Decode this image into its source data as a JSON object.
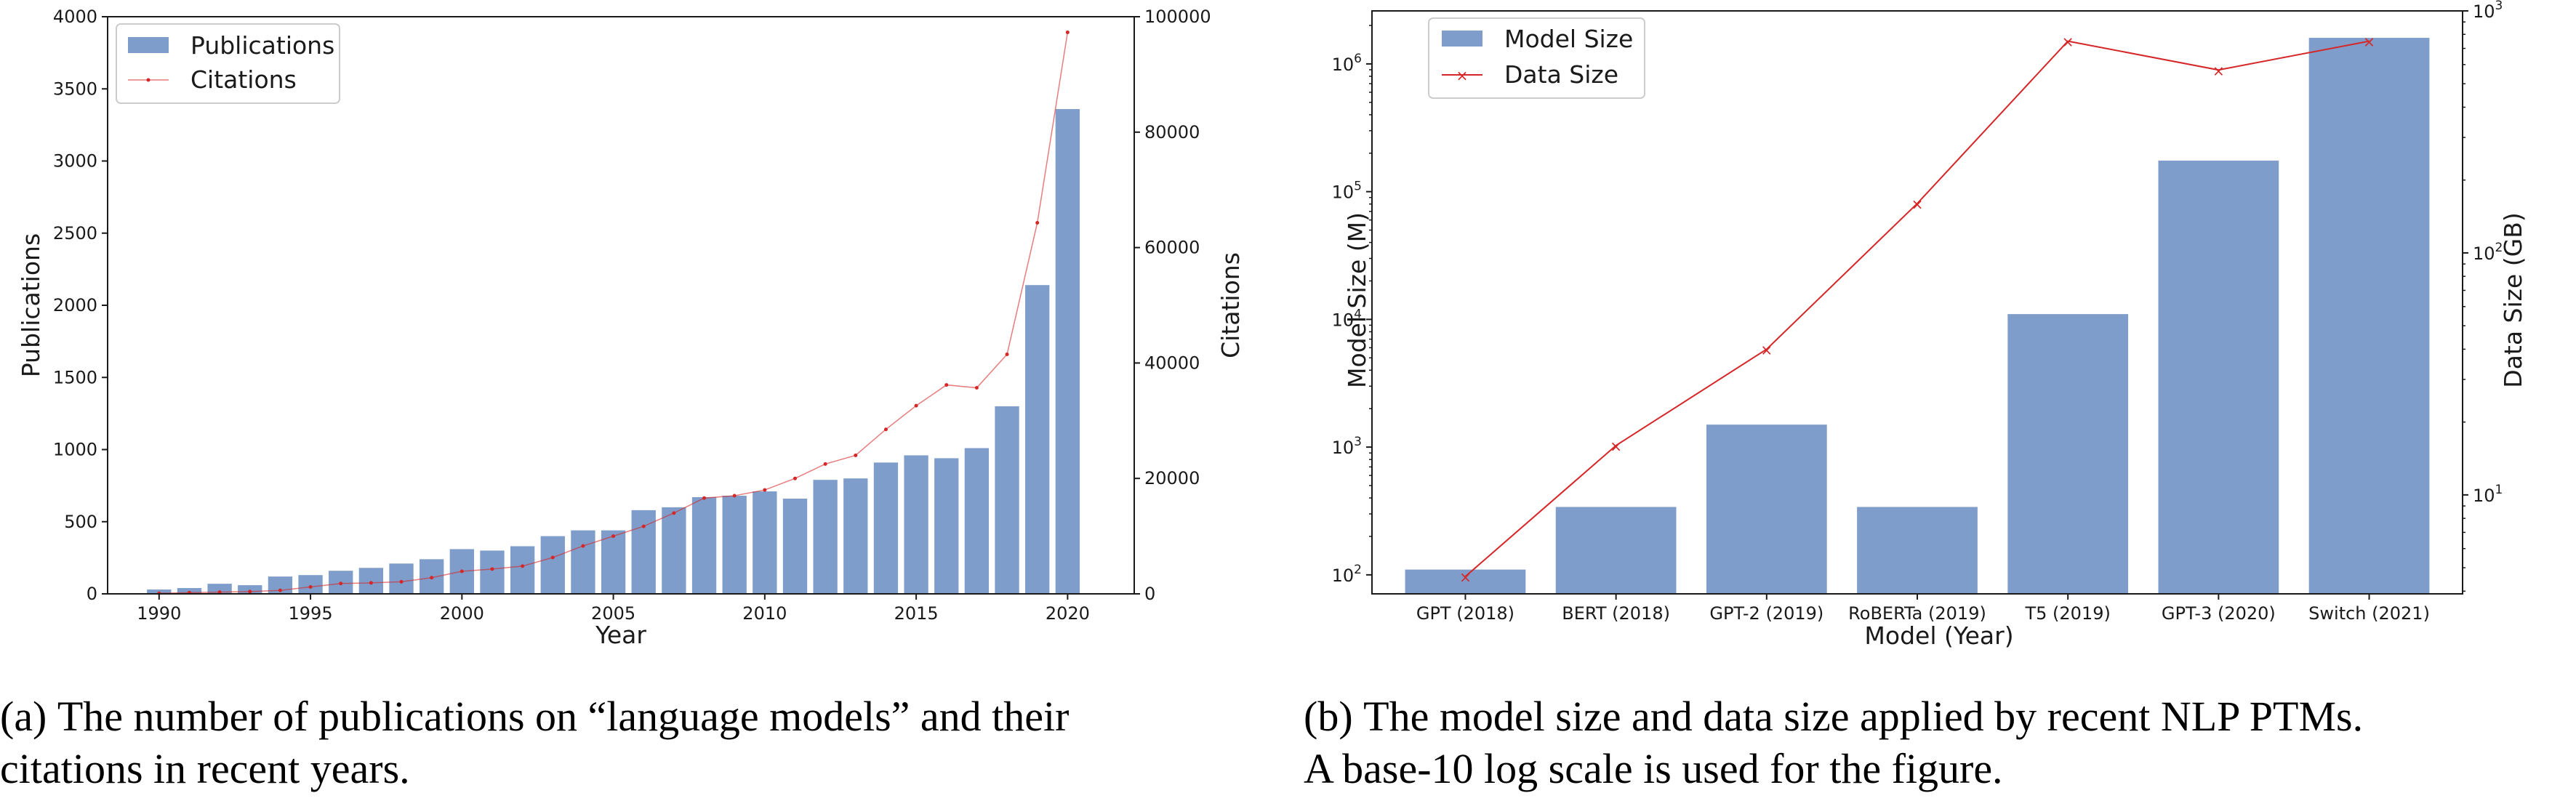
{
  "colors": {
    "bar": "#7f9dca",
    "line": "#d62728",
    "axis": "#1a1a1a"
  },
  "chart_data": [
    {
      "type": "bar",
      "xlabel": "Year",
      "ylabel": "Publications",
      "y2label": "Citations",
      "xlim": [
        1988.3,
        2022.2
      ],
      "ylim": [
        0,
        4000
      ],
      "y2lim": [
        0,
        100000
      ],
      "xticks": [
        1990,
        1995,
        2000,
        2005,
        2010,
        2015,
        2020
      ],
      "yticks": [
        0,
        500,
        1000,
        1500,
        2000,
        2500,
        3000,
        3500,
        4000
      ],
      "y2ticks": [
        0,
        20000,
        40000,
        60000,
        80000,
        100000
      ],
      "legend_location": "upper-left",
      "series": [
        {
          "name": "Publications",
          "type": "bar",
          "axis": "left",
          "x": [
            1990,
            1991,
            1992,
            1993,
            1994,
            1995,
            1996,
            1997,
            1998,
            1999,
            2000,
            2001,
            2002,
            2003,
            2004,
            2005,
            2006,
            2007,
            2008,
            2009,
            2010,
            2011,
            2012,
            2013,
            2014,
            2015,
            2016,
            2017,
            2018,
            2019,
            2020
          ],
          "values": [
            30,
            40,
            70,
            60,
            120,
            130,
            160,
            180,
            210,
            240,
            310,
            300,
            330,
            400,
            440,
            440,
            580,
            600,
            670,
            680,
            710,
            660,
            790,
            800,
            910,
            960,
            940,
            1010,
            1300,
            2140,
            3360
          ]
        },
        {
          "name": "Citations",
          "type": "line",
          "axis": "right",
          "x": [
            1990,
            1991,
            1992,
            1993,
            1994,
            1995,
            1996,
            1997,
            1998,
            1999,
            2000,
            2001,
            2002,
            2003,
            2004,
            2005,
            2006,
            2007,
            2008,
            2009,
            2010,
            2011,
            2012,
            2013,
            2014,
            2015,
            2016,
            2017,
            2018,
            2019,
            2020
          ],
          "values": [
            100,
            200,
            300,
            400,
            600,
            1200,
            1800,
            1900,
            2100,
            2800,
            3900,
            4300,
            4800,
            6300,
            8300,
            10000,
            11700,
            14000,
            16600,
            17000,
            18000,
            20000,
            22500,
            24000,
            28500,
            32600,
            36200,
            35700,
            41500,
            64300,
            97300
          ]
        }
      ]
    },
    {
      "type": "bar",
      "xlabel": "Model (Year)",
      "ylabel": "Model Size (M)",
      "y2label": "Data Size (GB)",
      "yscale": "log",
      "y2scale": "log",
      "ylim": [
        71,
        2600000
      ],
      "y2lim": [
        3.9,
        1000
      ],
      "yticks": [
        100,
        1000,
        10000,
        100000,
        1000000
      ],
      "ytick_labels": [
        [
          "10",
          "2"
        ],
        [
          "10",
          "3"
        ],
        [
          "10",
          "4"
        ],
        [
          "10",
          "5"
        ],
        [
          "10",
          "6"
        ]
      ],
      "y2ticks": [
        10,
        100,
        1000
      ],
      "y2tick_labels": [
        [
          "10",
          "1"
        ],
        [
          "10",
          "2"
        ],
        [
          "10",
          "3"
        ]
      ],
      "legend_location": "upper-left",
      "categories": [
        "GPT (2018)",
        "BERT (2018)",
        "GPT-2 (2019)",
        "RoBERTa (2019)",
        "T5 (2019)",
        "GPT-3 (2020)",
        "Switch (2021)"
      ],
      "series": [
        {
          "name": "Model Size",
          "type": "bar",
          "axis": "left",
          "values": [
            110,
            340,
            1500,
            340,
            11000,
            175000,
            1600000
          ]
        },
        {
          "name": "Data Size",
          "type": "line",
          "axis": "right",
          "values": [
            4.6,
            16,
            40,
            160,
            750,
            570,
            750
          ]
        }
      ]
    }
  ],
  "captions": {
    "a": {
      "label": "(a)",
      "lines": [
        "The number of publications on “language models” and their",
        "citations in recent years."
      ]
    },
    "b": {
      "label": "(b)",
      "lines": [
        "The model size and data size applied by recent NLP PTMs.",
        "A base-10 log scale is used for the figure."
      ]
    }
  }
}
